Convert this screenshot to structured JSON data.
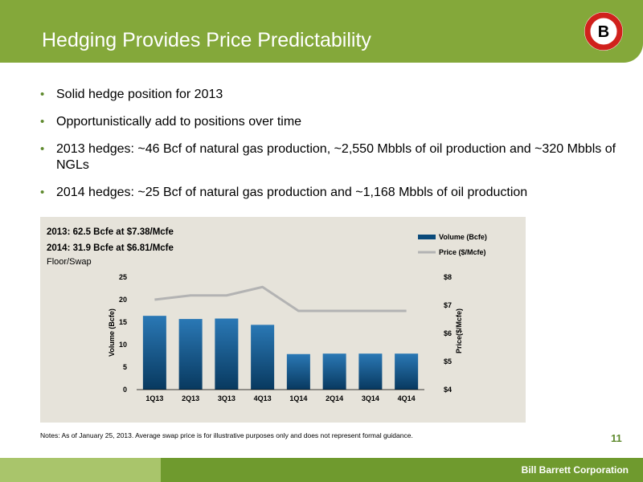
{
  "header": {
    "title": "Hedging Provides Price Predictability"
  },
  "logo": {
    "letter": "B",
    "ring_color": "#d0211c"
  },
  "bullets": [
    "Solid hedge position for 2013",
    "Opportunistically add to positions over time",
    "2013 hedges: ~46 Bcf of natural gas production, ~2,550 Mbbls of oil production and ~320 Mbbls of NGLs",
    "2014 hedges: ~25 Bcf of natural gas production and ~1,168 Mbbls of oil production"
  ],
  "chart_captions": {
    "line1": "2013: 62.5 Bcfe at $7.38/Mcfe",
    "line2": "2014: 31.9 Bcfe at $6.81/Mcfe",
    "line3": "Floor/Swap"
  },
  "chart_data": {
    "type": "bar",
    "categories": [
      "1Q13",
      "2Q13",
      "3Q13",
      "4Q13",
      "1Q14",
      "2Q14",
      "3Q14",
      "4Q14"
    ],
    "series": [
      {
        "name": "Volume (Bcfe)",
        "type": "bar",
        "axis": "left",
        "values": [
          16.4,
          15.7,
          15.8,
          14.4,
          7.9,
          8.0,
          8.0,
          8.0
        ]
      },
      {
        "name": "Price ($/Mcfe)",
        "type": "line",
        "axis": "right",
        "values": [
          7.2,
          7.35,
          7.35,
          7.65,
          6.8,
          6.8,
          6.8,
          6.8
        ]
      }
    ],
    "ylabel": "Volume (Bcfe)",
    "y2label": "Price($/Mcfe)",
    "ylim": [
      0,
      25
    ],
    "y2lim": [
      4,
      8
    ],
    "yticks": [
      0,
      5,
      10,
      15,
      20,
      25
    ],
    "y2tick_labels": [
      "$4",
      "$5",
      "$6",
      "$7",
      "$8"
    ],
    "y2ticks": [
      4,
      5,
      6,
      7,
      8
    ],
    "legend": "top-right",
    "grid": false,
    "colors": {
      "bar": "#0a4a7a",
      "bar_light": "#2a78b5",
      "line": "#b3b3b3"
    }
  },
  "notes": "Notes: As of January 25, 2013. Average swap price is for illustrative purposes only and does not represent formal guidance.",
  "page_number": "11",
  "footer": {
    "company": "Bill Barrett Corporation"
  }
}
